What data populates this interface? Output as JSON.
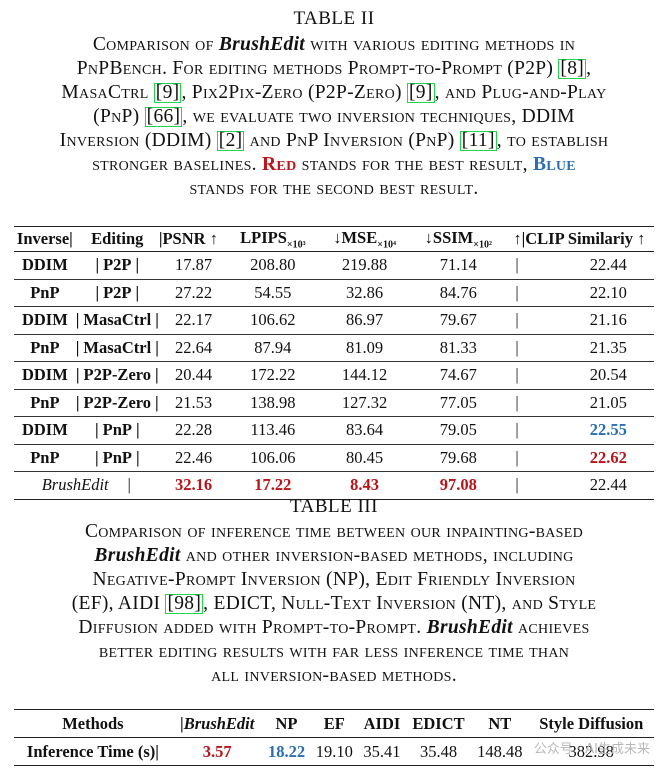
{
  "table2": {
    "title": "TABLE II",
    "caption": {
      "l1_a": "Comparison of ",
      "l1_it": "BrushEdit",
      "l1_b": " with various editing methods in",
      "l2_a": "PnPBench. For editing methods Prompt-to-Prompt (P2P) ",
      "l2_ref": "8",
      "l2_b": ",",
      "l3_a": "MasaCtrl ",
      "l3_ref1": "9",
      "l3_b": ", Pix2Pix-Zero (P2P-Zero) ",
      "l3_ref2": "9",
      "l3_c": ", and Plug-and-Play",
      "l4_a": "(PnP) ",
      "l4_ref1": "66",
      "l4_b": ", we evaluate two inversion techniques, DDIM",
      "l5_a": "Inversion (DDIM) ",
      "l5_ref1": "2",
      "l5_b": " and PnP Inversion (PnP) ",
      "l5_ref2": "11",
      "l5_c": ", to establish",
      "l6_a": "stronger baselines. ",
      "l6_red": "Red",
      "l6_b": " stands for the best result, ",
      "l6_blue": "Blue",
      "l7": "stands for the second best result."
    },
    "headers": [
      "Inverse|",
      "Editing",
      "|PSNR ↑",
      "LPIPS",
      "×10³",
      " ↓MSE",
      "×10⁴",
      " ↓SSIM",
      "×10²",
      " ↑|CLIP Similariy ↑"
    ],
    "rows": [
      [
        "DDIM",
        "|",
        "P2P",
        "|",
        "17.87",
        "208.80",
        "219.88",
        "71.14",
        "|",
        "22.44"
      ],
      [
        "PnP",
        "|",
        "P2P",
        "|",
        "27.22",
        "54.55",
        "32.86",
        "84.76",
        "|",
        "22.10"
      ],
      [
        "DDIM",
        "|",
        "MasaCtrl",
        "|",
        "22.17",
        "106.62",
        "86.97",
        "79.67",
        "|",
        "21.16"
      ],
      [
        "PnP",
        "|",
        "MasaCtrl",
        "|",
        "22.64",
        "87.94",
        "81.09",
        "81.33",
        "|",
        "21.35"
      ],
      [
        "DDIM",
        "|",
        "P2P-Zero",
        "|",
        "20.44",
        "172.22",
        "144.12",
        "74.67",
        "|",
        "20.54"
      ],
      [
        "PnP",
        "|",
        "P2P-Zero",
        "|",
        "21.53",
        "138.98",
        "127.32",
        "77.05",
        "|",
        "21.05"
      ],
      [
        "DDIM",
        "|",
        "PnP",
        "|",
        "22.28",
        "113.46",
        "83.64",
        "79.05",
        "|",
        "22.55"
      ],
      [
        "PnP",
        "|",
        "PnP",
        "|",
        "22.46",
        "106.06",
        "80.45",
        "79.68",
        "|",
        "22.62"
      ],
      [
        "BrushEdit",
        "|",
        "",
        "|",
        "32.16",
        "17.22",
        "8.43",
        "97.08",
        "|",
        "22.44"
      ]
    ]
  },
  "table3": {
    "title": "TABLE III",
    "caption": {
      "l1": "Comparison of inference time between our inpainting-based",
      "l2_it": "BrushEdit",
      "l2_b": " and other inversion-based methods, including",
      "l3": "Negative-Prompt Inversion (NP), Edit Friendly Inversion",
      "l4_a": "(EF), AIDI ",
      "l4_ref": "98",
      "l4_b": ", EDICT, Null-Text Inversion (NT), and Style",
      "l5_a": "Diffusion added with Prompt-to-Prompt. ",
      "l5_it": "BrushEdit",
      "l5_b": " achieves",
      "l6": "better editing results with far less inference time than",
      "l7": "all inversion-based methods."
    },
    "headers": [
      "Methods",
      "|BrushEdit",
      "NP",
      "EF",
      "AIDI",
      "EDICT",
      "NT",
      "Style Diffusion"
    ],
    "row": [
      "Inference Time (s)|",
      "3.57",
      "18.22",
      "19.10",
      "35.41",
      "35.48",
      "148.48",
      "382.98"
    ]
  },
  "watermark": "公众号 · AI生成未来",
  "colors": {
    "best": "#b8141a",
    "second": "#2a6fb5",
    "ref_box": "#22d64a"
  }
}
